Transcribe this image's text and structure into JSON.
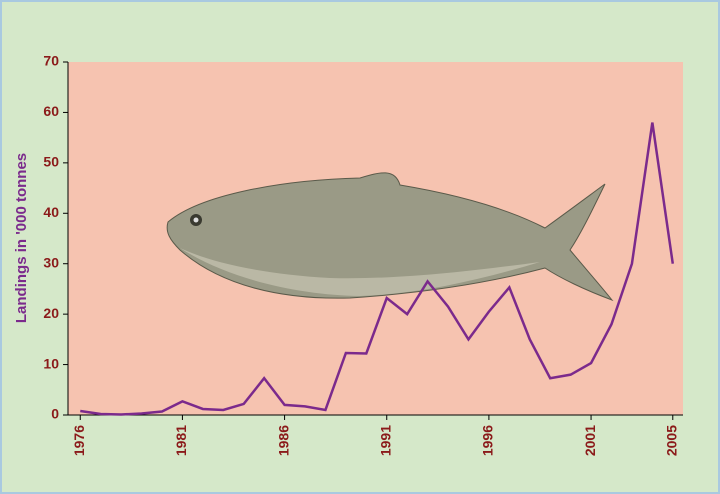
{
  "chart_data": {
    "type": "line",
    "y_label": "Landings in '000 tonnes",
    "x": [
      1976,
      1977,
      1978,
      1979,
      1980,
      1981,
      1982,
      1983,
      1984,
      1985,
      1986,
      1987,
      1988,
      1989,
      1990,
      1991,
      1992,
      1993,
      1994,
      1995,
      1996,
      1997,
      1998,
      1999,
      2000,
      2001,
      2002,
      2003,
      2004,
      2005
    ],
    "series": [
      {
        "color": "#7b2a8c",
        "values": [
          0.8,
          0.2,
          0.1,
          0.3,
          0.7,
          2.7,
          1.2,
          1.0,
          2.2,
          7.3,
          2.0,
          1.7,
          1.0,
          12.3,
          12.2,
          23.2,
          20,
          26.5,
          21.5,
          15,
          20.5,
          25.3,
          15,
          7.3,
          8,
          10.3,
          18,
          30,
          58,
          30
        ]
      }
    ],
    "xlim": [
      1975.4,
      2005.5
    ],
    "xticks": [
      1976,
      1981,
      1986,
      1991,
      1996,
      2001,
      2005
    ],
    "ylim": [
      0,
      70
    ],
    "yticks": [
      0,
      10,
      20,
      30,
      40,
      50,
      60,
      70
    ]
  }
}
